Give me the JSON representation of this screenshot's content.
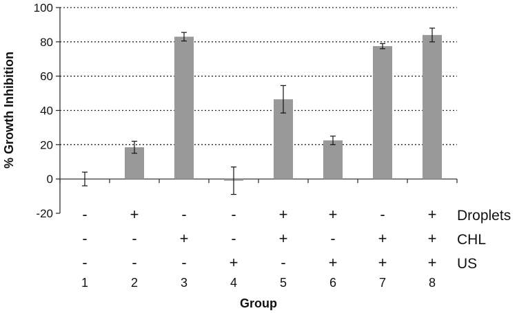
{
  "chart_data": {
    "type": "bar",
    "categories": [
      "1",
      "2",
      "3",
      "4",
      "5",
      "6",
      "7",
      "8"
    ],
    "values": [
      0,
      18.5,
      83,
      -1,
      46.5,
      22.5,
      77.5,
      84
    ],
    "errors": [
      4,
      3.5,
      2.5,
      8,
      8,
      2.5,
      1.5,
      4
    ],
    "xlabel": "Group",
    "ylabel": "% Growth Inhibition",
    "ylim": [
      -20,
      100
    ],
    "yticks": [
      "-20",
      "0",
      "20",
      "40",
      "60",
      "80",
      "100"
    ],
    "grid": "horizontal-dotted",
    "bar_color": "#999999",
    "conditions": [
      {
        "name": "Droplets",
        "signs": [
          "-",
          "+",
          "-",
          "-",
          "+",
          "+",
          "-",
          "+"
        ]
      },
      {
        "name": "CHL",
        "signs": [
          "-",
          "-",
          "+",
          "-",
          "+",
          "-",
          "+",
          "+"
        ]
      },
      {
        "name": "US",
        "signs": [
          "-",
          "-",
          "-",
          "+",
          "-",
          "+",
          "+",
          "+"
        ]
      }
    ]
  }
}
